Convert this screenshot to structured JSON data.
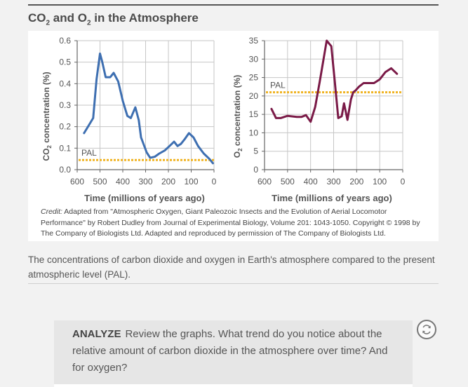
{
  "figure": {
    "title_parts": [
      "CO",
      "2",
      " and O",
      "2",
      " in the Atmosphere"
    ],
    "credit_label": "Credit:",
    "credit_text": "Adapted from \"Atmospheric Oxygen, Giant Paleozoic Insects and the Evolution of Aerial Locomotor Performance\" by Robert Dudley from Journal of Experimental Biology, Volume 201: 1043-1050. Copyright © 1998 by The Company of Biologists Ltd. Adapted and reproduced by permission of The Company of Biologists Ltd."
  },
  "caption": "The concentrations of carbon dioxide and oxygen in Earth's atmosphere compared to the present atmospheric level (PAL).",
  "analyze": {
    "label": "ANALYZE",
    "text": "Review the graphs. What trend do you notice about the relative amount of carbon dioxide in the atmosphere over time? And for oxygen?"
  },
  "colors": {
    "co2_line": "#3e6fb1",
    "o2_line": "#7a1a47",
    "pal_line": "#f0b323",
    "grid": "#c6c6c6"
  },
  "chart_data": [
    {
      "type": "line",
      "ylabel_prefix": "CO",
      "ylabel_sub": "2",
      "ylabel_suffix": " concentration (%)",
      "xlabel": "Time (millions of years ago)",
      "x_ticks": [
        600,
        500,
        400,
        300,
        200,
        100,
        0
      ],
      "x_tick_labels": [
        "600",
        "500",
        "400",
        "300",
        "200",
        "100",
        "0"
      ],
      "y_ticks": [
        0.0,
        0.1,
        0.2,
        0.3,
        0.4,
        0.5,
        0.6
      ],
      "y_tick_labels": [
        "0.0",
        "0.1",
        "0.2",
        "0.3",
        "0.4",
        "0.5",
        "0.6"
      ],
      "xlim": [
        600,
        0
      ],
      "ylim": [
        0,
        0.6
      ],
      "pal_label": "PAL",
      "pal_value": 0.045,
      "series": [
        {
          "name": "CO2",
          "x": [
            570,
            530,
            515,
            500,
            490,
            475,
            455,
            440,
            420,
            400,
            380,
            365,
            345,
            330,
            320,
            295,
            280,
            260,
            240,
            215,
            195,
            175,
            160,
            145,
            130,
            110,
            90,
            70,
            45,
            20,
            5
          ],
          "y": [
            0.17,
            0.24,
            0.42,
            0.54,
            0.5,
            0.43,
            0.43,
            0.45,
            0.41,
            0.32,
            0.25,
            0.24,
            0.29,
            0.23,
            0.15,
            0.08,
            0.055,
            0.06,
            0.075,
            0.09,
            0.11,
            0.13,
            0.11,
            0.12,
            0.14,
            0.17,
            0.15,
            0.11,
            0.075,
            0.05,
            0.03
          ]
        }
      ]
    },
    {
      "type": "line",
      "ylabel_prefix": "O",
      "ylabel_sub": "2",
      "ylabel_suffix": " concentration (%)",
      "xlabel": "Time (millions of years ago)",
      "x_ticks": [
        600,
        500,
        400,
        300,
        200,
        100,
        0
      ],
      "x_tick_labels": [
        "600",
        "500",
        "400",
        "300",
        "200",
        "100",
        "0"
      ],
      "y_ticks": [
        0,
        5,
        10,
        15,
        20,
        25,
        30,
        35
      ],
      "y_tick_labels": [
        "0",
        "5",
        "10",
        "15",
        "20",
        "25",
        "30",
        "35"
      ],
      "xlim": [
        600,
        0
      ],
      "ylim": [
        0,
        35
      ],
      "pal_label": "PAL",
      "pal_value": 21,
      "series": [
        {
          "name": "O2",
          "x": [
            570,
            550,
            530,
            500,
            460,
            440,
            420,
            400,
            380,
            360,
            330,
            310,
            295,
            280,
            265,
            255,
            240,
            225,
            215,
            205,
            190,
            170,
            150,
            125,
            100,
            75,
            50,
            25
          ],
          "y": [
            16.5,
            14.0,
            14.0,
            14.6,
            14.3,
            14.3,
            14.8,
            13.0,
            17.0,
            24.0,
            35.0,
            33.5,
            24.0,
            14.0,
            14.5,
            18.0,
            13.5,
            19.0,
            21.0,
            21.5,
            22.5,
            23.5,
            23.5,
            23.5,
            24.5,
            26.5,
            27.5,
            26.0
          ]
        }
      ]
    }
  ]
}
